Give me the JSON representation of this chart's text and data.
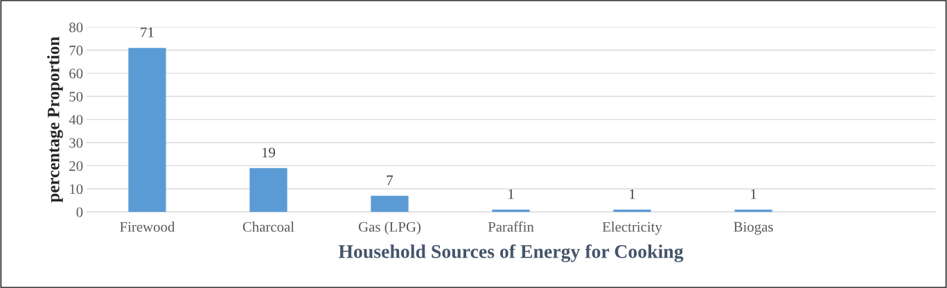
{
  "chart_data": {
    "type": "bar",
    "xlabel": "Household Sources of Energy for Cooking",
    "ylabel": "percentage Proportion",
    "categories": [
      "Firewood",
      "Charcoal",
      "Gas (LPG)",
      "Paraffin",
      "Electricity",
      "Biogas",
      null
    ],
    "values": [
      71,
      19,
      7,
      1,
      1,
      1,
      null
    ],
    "color": "#5b9bd5",
    "data_labels": true,
    "ylim": [
      0,
      80
    ],
    "yticks": [
      0,
      10,
      20,
      30,
      40,
      50,
      60,
      70,
      80
    ],
    "grid": "y"
  }
}
